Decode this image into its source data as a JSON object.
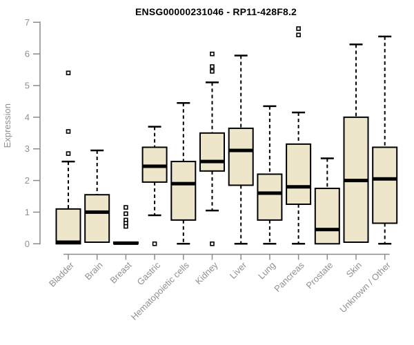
{
  "chart_data": {
    "type": "boxplot",
    "title": "ENSG00000231046 - RP11-428F8.2",
    "ylabel": "Expression",
    "xlabel": "",
    "ylim": [
      0,
      7
    ],
    "yticks": [
      0,
      1,
      2,
      3,
      4,
      5,
      6,
      7
    ],
    "grid": false,
    "legend": false,
    "categories": [
      "Bladder",
      "Brain",
      "Breast",
      "Gastric",
      "Hematopoietic cells",
      "Kidney",
      "Liver",
      "Lung",
      "Pancreas",
      "Prostate",
      "Skin",
      "Unknown / Other"
    ],
    "series": [
      {
        "category": "Bladder",
        "low": 0,
        "q1": 0,
        "median": 0.05,
        "q3": 1.1,
        "high": 2.6,
        "outliers": [
          2.85,
          3.55,
          5.4
        ]
      },
      {
        "category": "Brain",
        "low": 0.05,
        "q1": 0.05,
        "median": 1.0,
        "q3": 1.55,
        "high": 2.95,
        "outliers": []
      },
      {
        "category": "Breast",
        "low": 0,
        "q1": 0,
        "median": 0.02,
        "q3": 0.05,
        "high": 0.05,
        "outliers": [
          1.15,
          0.95,
          0.75,
          0.65,
          0.55
        ]
      },
      {
        "category": "Gastric",
        "low": 0.9,
        "q1": 1.95,
        "median": 2.45,
        "q3": 3.05,
        "high": 3.7,
        "outliers": [
          0
        ]
      },
      {
        "category": "Hematopoietic cells",
        "low": 0,
        "q1": 0.75,
        "median": 1.9,
        "q3": 2.6,
        "high": 4.45,
        "outliers": []
      },
      {
        "category": "Kidney",
        "low": 1.05,
        "q1": 2.3,
        "median": 2.6,
        "q3": 3.5,
        "high": 5.1,
        "outliers": [
          6.0,
          5.6,
          5.45,
          0
        ]
      },
      {
        "category": "Liver",
        "low": 0,
        "q1": 1.85,
        "median": 2.95,
        "q3": 3.65,
        "high": 5.95,
        "outliers": []
      },
      {
        "category": "Lung",
        "low": 0,
        "q1": 0.75,
        "median": 1.6,
        "q3": 2.2,
        "high": 4.35,
        "outliers": []
      },
      {
        "category": "Pancreas",
        "low": 0,
        "q1": 1.25,
        "median": 1.8,
        "q3": 3.15,
        "high": 4.15,
        "outliers": [
          6.8,
          6.6
        ]
      },
      {
        "category": "Prostate",
        "low": 0,
        "q1": 0,
        "median": 0.45,
        "q3": 1.75,
        "high": 2.7,
        "outliers": []
      },
      {
        "category": "Skin",
        "low": 0.05,
        "q1": 0.05,
        "median": 2.0,
        "q3": 4.0,
        "high": 6.3,
        "outliers": []
      },
      {
        "category": "Unknown / Other",
        "low": 0,
        "q1": 0.65,
        "median": 2.05,
        "q3": 3.05,
        "high": 6.55,
        "outliers": []
      }
    ],
    "colors": {
      "box_fill": "#EDE6CB",
      "box_stroke": "#000000",
      "axis": "#8A8A8B",
      "tick_label": "#8E9094",
      "title": "#000000",
      "background": "#FFFFFF"
    }
  }
}
